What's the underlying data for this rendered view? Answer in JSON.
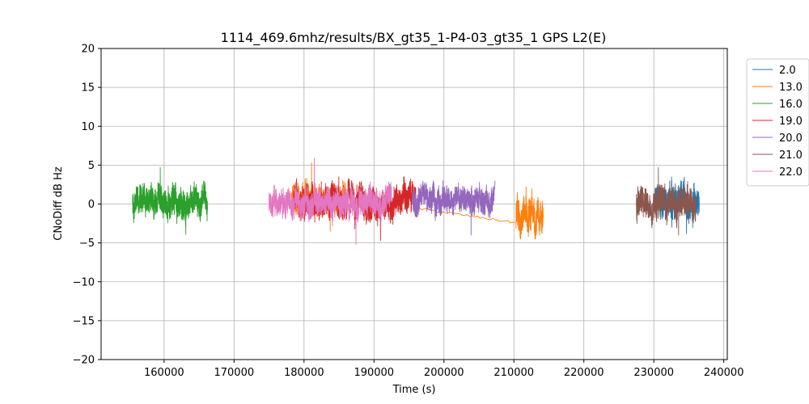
{
  "chart_data": {
    "type": "line",
    "title": "1114_469.6mhz/results/BX_gt35_1-P4-03_gt35_1 GPS L2(E)",
    "xlabel": "Time (s)",
    "ylabel": "CNoDiff dB Hz",
    "xlim": [
      151000,
      240500
    ],
    "ylim": [
      -20,
      20
    ],
    "xticks": [
      160000,
      170000,
      180000,
      190000,
      200000,
      210000,
      220000,
      230000,
      240000
    ],
    "xtick_labels": [
      "160000",
      "170000",
      "180000",
      "190000",
      "200000",
      "210000",
      "220000",
      "230000",
      "240000"
    ],
    "yticks": [
      -20,
      -15,
      -10,
      -5,
      0,
      5,
      10,
      15,
      20
    ],
    "ytick_labels": [
      "−20",
      "−15",
      "−10",
      "−5",
      "0",
      "5",
      "10",
      "15",
      "20"
    ],
    "grid": true,
    "legend_position": "outside-top-right",
    "series": [
      {
        "name": "2.0",
        "color": "#1f77b4",
        "x_start": 230200,
        "x_end": 236500,
        "y_center": 0.2,
        "y_amp": 1.6,
        "y_min": -3.8,
        "y_max": 3.5
      },
      {
        "name": "13.0",
        "color": "#ff7f0e",
        "segments": [
          {
            "x_start": 178200,
            "x_end": 186000,
            "y_center": 0.5,
            "y_amp": 1.5,
            "y_min": -3.5,
            "y_max": 5.3
          },
          {
            "x_start": 195800,
            "x_end": 210200,
            "y_center": -0.5,
            "y_amp": 0.5,
            "y_min": -2.5,
            "y_max": 1.0,
            "slope_to": -2.4
          },
          {
            "x_start": 210300,
            "x_end": 214200,
            "y_center": -1.8,
            "y_amp": 1.8,
            "y_min": -4.5,
            "y_max": 2.2
          }
        ]
      },
      {
        "name": "16.0",
        "color": "#2ca02c",
        "x_start": 155500,
        "x_end": 166200,
        "y_center": 0.3,
        "y_amp": 1.6,
        "y_min": -3.9,
        "y_max": 4.7
      },
      {
        "name": "19.0",
        "color": "#d62728",
        "x_start": 178500,
        "x_end": 196000,
        "y_center": 0.3,
        "y_amp": 1.6,
        "y_min": -4.7,
        "y_max": 3.5
      },
      {
        "name": "20.0",
        "color": "#9467bd",
        "x_start": 195500,
        "x_end": 207300,
        "y_center": 0.5,
        "y_amp": 1.4,
        "y_min": -4.0,
        "y_max": 3.0
      },
      {
        "name": "21.0",
        "color": "#8c564b",
        "x_start": 227500,
        "x_end": 236000,
        "y_center": 0.1,
        "y_amp": 1.6,
        "y_min": -4.0,
        "y_max": 4.7
      },
      {
        "name": "22.0",
        "color": "#e377c2",
        "x_start": 175000,
        "x_end": 192500,
        "y_center": 0.2,
        "y_amp": 1.4,
        "y_min": -5.2,
        "y_max": 5.9
      }
    ]
  }
}
